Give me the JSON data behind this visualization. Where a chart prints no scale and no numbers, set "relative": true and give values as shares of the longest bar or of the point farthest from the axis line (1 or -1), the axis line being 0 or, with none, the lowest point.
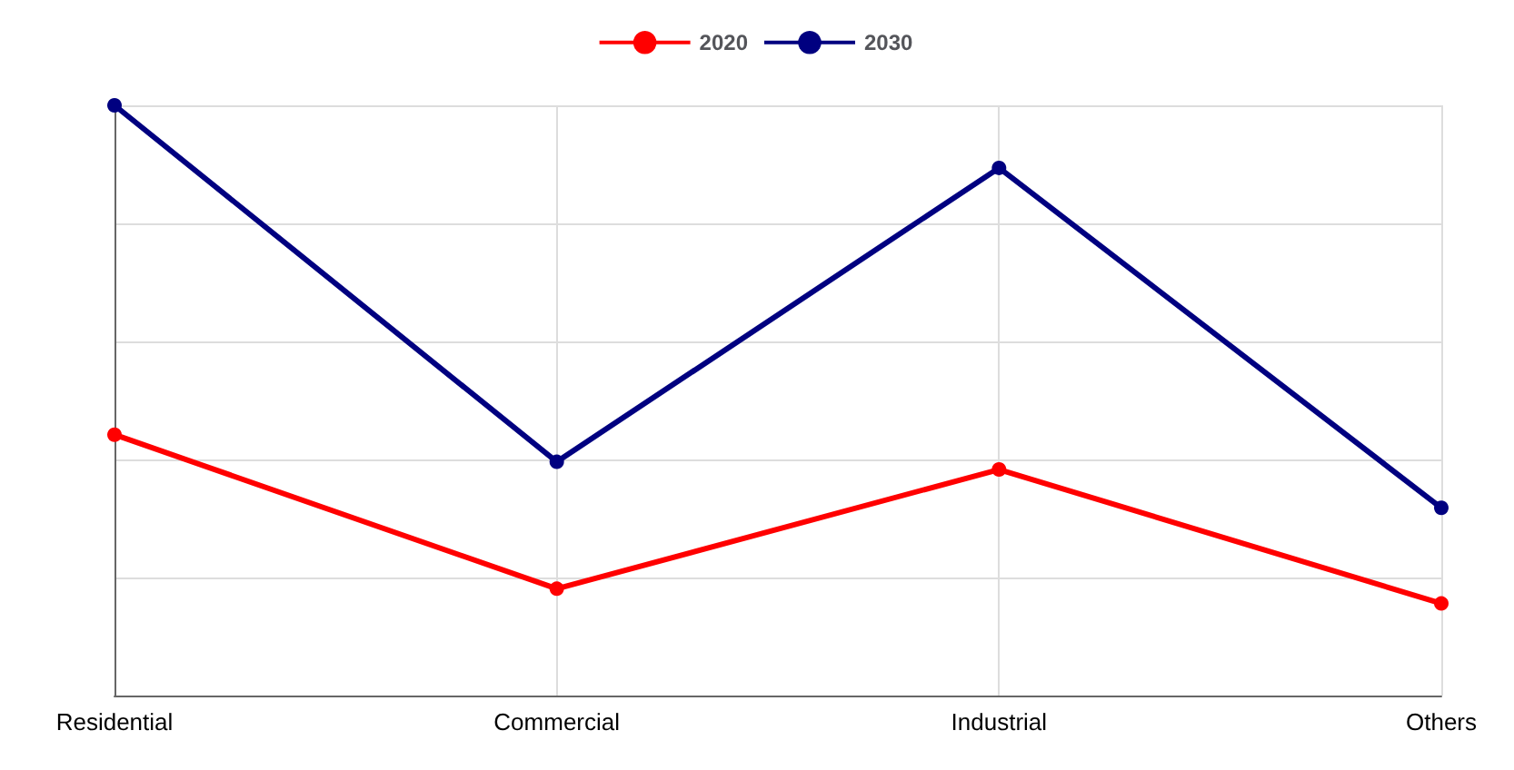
{
  "chart_data": {
    "type": "line",
    "relative": true,
    "categories": [
      "Residential",
      "Commercial",
      "Industrial",
      "Others"
    ],
    "series": [
      {
        "name": "2020",
        "color": "#ff0000",
        "values": [
          0.442,
          0.181,
          0.383,
          0.156
        ]
      },
      {
        "name": "2030",
        "color": "#000080",
        "values": [
          1,
          0.396,
          0.894,
          0.318
        ]
      }
    ],
    "grid": true,
    "legend": "top",
    "marker": "circle",
    "line_style": "solid"
  }
}
